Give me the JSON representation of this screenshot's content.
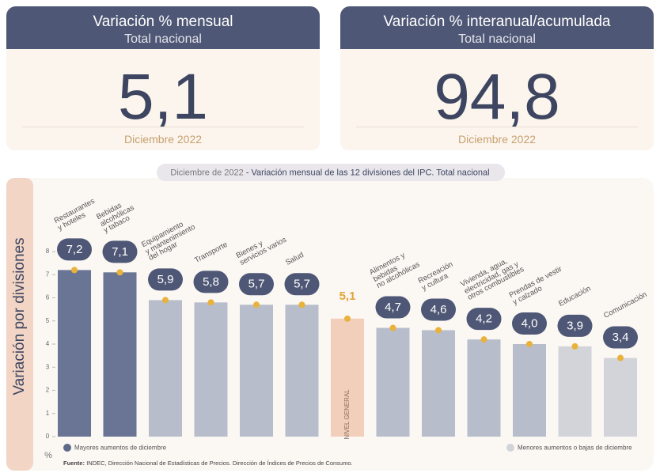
{
  "cards": [
    {
      "title": "Variación % mensual",
      "subtitle": "Total nacional",
      "value": "5,1",
      "period": "Diciembre 2022"
    },
    {
      "title": "Variación % interanual/acumulada",
      "subtitle": "Total nacional",
      "value": "94,8",
      "period": "Diciembre 2022"
    }
  ],
  "chart_data": {
    "type": "bar",
    "title": "Diciembre de 2022",
    "subtitle": "- Variación mensual de las 12 divisiones del IPC. Total nacional",
    "y_label": "Variación por divisiones",
    "y_unit": "%",
    "categories": [
      "Restaurantes\ny hoteles",
      "Bebidas\nalcohólicas\ny tabaco",
      "Equipamiento\ny mantenimiento\ndel hogar",
      "Transporte",
      "Bienes y\nservicios varios",
      "Salud",
      null,
      "Alimentos y\nbebidas\nno alcohólicas",
      "Recreación\ny cultura",
      "Vivienda, agua,\nelectricidad, gas y\notros combustibles",
      "Prendas de vestir\ny calzado",
      "Educación",
      "Comunicación"
    ],
    "values": [
      7.2,
      7.1,
      5.9,
      5.8,
      5.7,
      5.7,
      5.1,
      4.7,
      4.6,
      4.2,
      4.0,
      3.9,
      3.4
    ],
    "value_labels": [
      "7,2",
      "7,1",
      "5,9",
      "5,8",
      "5,7",
      "5,7",
      "5,1",
      "4,7",
      "4,6",
      "4,2",
      "4,0",
      "3,9",
      "3,4"
    ],
    "colors": [
      "#6a7595",
      "#6a7595",
      "#b8bdcb",
      "#b8bdcb",
      "#b8bdcb",
      "#b8bdcb",
      "#f1cfbb",
      "#b8bdcb",
      "#b8bdcb",
      "#b8bdcb",
      "#b8bdcb",
      "#d2d4da",
      "#d2d4da"
    ],
    "general_label": "NIVEL GENERAL",
    "ylim": [
      0,
      8
    ],
    "yticks": [
      0,
      1,
      2,
      3,
      4,
      5,
      6,
      7,
      8
    ],
    "legend": [
      {
        "name": "Mayores aumentos de diciembre",
        "color": "#5e6a8a"
      },
      {
        "name": "Menores aumentos o bajas de diciembre",
        "color": "#d2d4da"
      }
    ],
    "source_label": "Fuente:",
    "source": "INDEC, Dirección Nacional de Estadísticas de Precios. Dirección de Índices de Precios de Consumo."
  }
}
